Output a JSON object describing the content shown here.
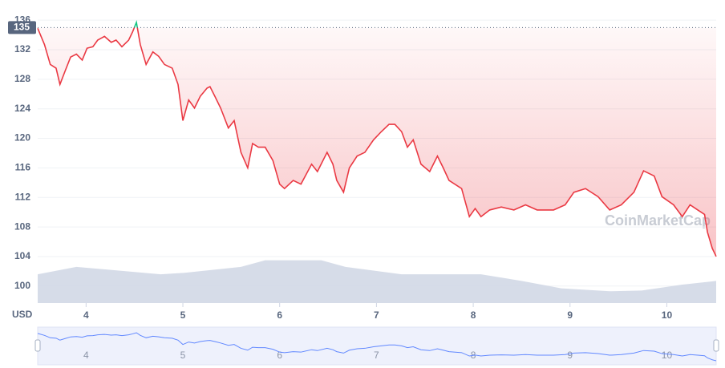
{
  "chart_data": {
    "type": "line",
    "currency_label": "USD",
    "watermark": "CoinMarketCap",
    "color": "#ea3943",
    "up_color": "#16c784",
    "volume_color": "#cfd6e4",
    "reference_line": 135,
    "xlim": [
      3.5,
      10.51
    ],
    "xticks": [
      4,
      5,
      6,
      7,
      8,
      9,
      10
    ],
    "ylim": [
      97.7,
      137.1
    ],
    "yticks": [
      100,
      104,
      108,
      112,
      116,
      120,
      124,
      128,
      132,
      136
    ],
    "grid": true,
    "x": [
      3.5,
      3.57,
      3.63,
      3.69,
      3.73,
      3.78,
      3.84,
      3.9,
      3.96,
      4.01,
      4.07,
      4.12,
      4.19,
      4.26,
      4.31,
      4.37,
      4.44,
      4.48,
      4.52,
      4.56,
      4.62,
      4.69,
      4.75,
      4.81,
      4.89,
      4.95,
      5.0,
      5.06,
      5.12,
      5.18,
      5.25,
      5.28,
      5.33,
      5.39,
      5.47,
      5.53,
      5.6,
      5.67,
      5.72,
      5.78,
      5.85,
      5.93,
      6.0,
      6.05,
      6.14,
      6.22,
      6.33,
      6.39,
      6.49,
      6.55,
      6.59,
      6.66,
      6.72,
      6.8,
      6.88,
      6.97,
      7.05,
      7.13,
      7.19,
      7.26,
      7.32,
      7.38,
      7.46,
      7.55,
      7.63,
      7.69,
      7.75,
      7.88,
      7.96,
      8.02,
      8.08,
      8.17,
      8.29,
      8.42,
      8.54,
      8.66,
      8.83,
      8.95,
      9.04,
      9.16,
      9.29,
      9.41,
      9.53,
      9.66,
      9.76,
      9.87,
      9.95,
      10.07,
      10.16,
      10.24,
      10.32,
      10.39,
      10.42,
      10.47,
      10.51
    ],
    "values": [
      134.9,
      132.7,
      130,
      129.5,
      127.3,
      129,
      131,
      131.4,
      130.6,
      132.2,
      132.4,
      133.3,
      133.8,
      133,
      133.3,
      132.4,
      133.3,
      134.4,
      135.7,
      132.7,
      130,
      131.7,
      131.1,
      130,
      129.5,
      127.3,
      122.4,
      125.2,
      124.1,
      125.7,
      126.8,
      127,
      125.7,
      124.1,
      121.4,
      122.4,
      118.1,
      116,
      119.3,
      118.8,
      118.8,
      117,
      113.8,
      113.2,
      114.3,
      113.8,
      116.5,
      115.5,
      118.1,
      116.5,
      114.3,
      112.7,
      116,
      117.6,
      118.1,
      119.8,
      120.9,
      121.9,
      121.9,
      120.9,
      118.8,
      119.8,
      116.5,
      115.5,
      117.6,
      116,
      114.3,
      113.2,
      109.4,
      110.5,
      109.4,
      110.3,
      110.7,
      110.3,
      111,
      110.3,
      110.3,
      111,
      112.7,
      113.2,
      112.1,
      110.3,
      111,
      112.7,
      115.6,
      114.9,
      112.1,
      111,
      109.4,
      111,
      110.3,
      109.7,
      107.3,
      105.1,
      104
    ],
    "volume": {
      "x": [
        3.5,
        3.9,
        4.77,
        5.02,
        5.6,
        5.85,
        6.43,
        6.68,
        7.26,
        8.08,
        8.5,
        8.91,
        9.41,
        9.74,
        10.16,
        10.51
      ],
      "values": [
        101.6,
        102.6,
        101.6,
        101.8,
        102.6,
        103.5,
        103.5,
        102.6,
        101.6,
        101.6,
        100.7,
        99.7,
        99.3,
        99.4,
        100.2,
        100.7
      ]
    }
  }
}
